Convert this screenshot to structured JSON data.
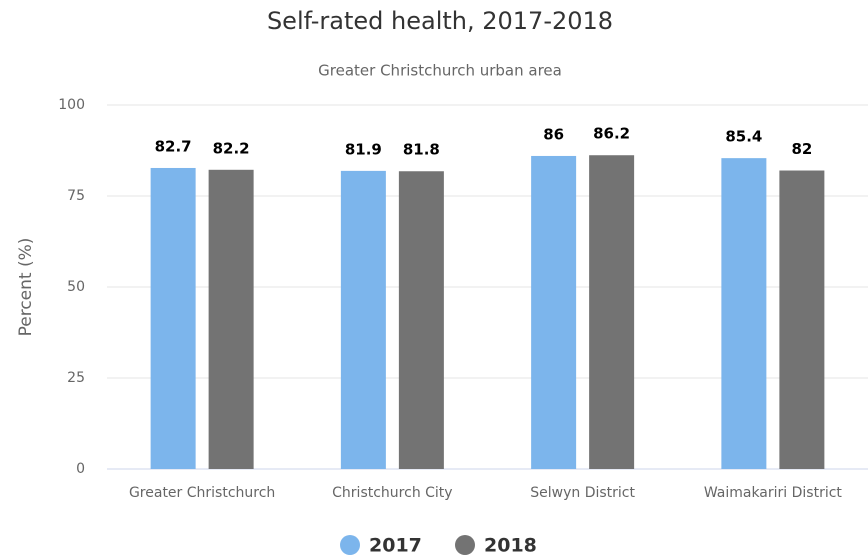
{
  "chart_data": {
    "type": "bar",
    "title": "Self-rated health, 2017-2018",
    "subtitle": "Greater Christchurch urban area",
    "y_label": "Percent (%)",
    "categories": [
      "Greater Christchurch",
      "Christchurch City",
      "Selwyn District",
      "Waimakariri District"
    ],
    "series": [
      {
        "name": "2017",
        "color": "#7cb5ec",
        "values": [
          82.7,
          81.9,
          86,
          85.4
        ]
      },
      {
        "name": "2018",
        "color": "#737373",
        "values": [
          82.2,
          81.8,
          86.2,
          82
        ]
      }
    ],
    "ylim": [
      0,
      100
    ],
    "yticks": [
      0,
      25,
      50,
      75,
      100
    ],
    "grid": true,
    "legend": "bottom"
  }
}
